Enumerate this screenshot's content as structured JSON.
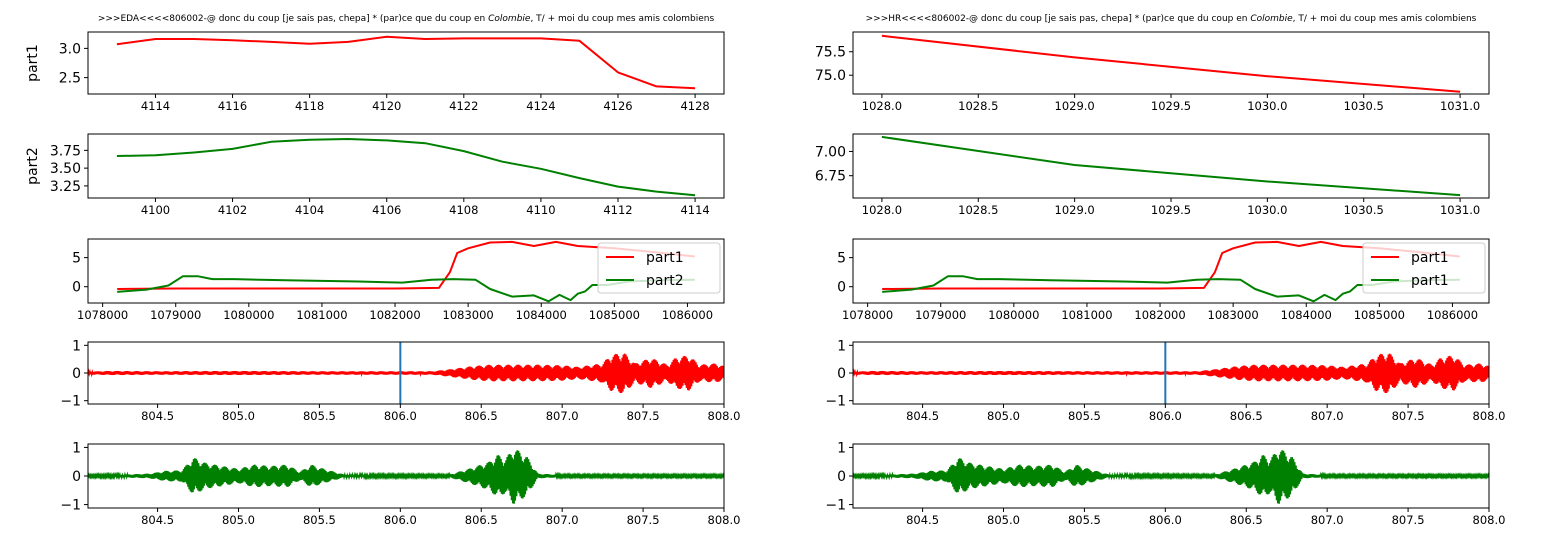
{
  "colors": {
    "red": "#ff0000",
    "green": "#008000",
    "marker": "#1f77b4"
  },
  "chart_data": [
    {
      "id": "eda_part1",
      "type": "line",
      "title": ">>>EDA<<<<806002-@ donc du coup [je sais pas, chepa] * (par)ce que du coup en $\\it{Colombie}$, T/ + moi du coup mes amis colombiens",
      "title_parts": [
        {
          "text": ">>>EDA<<<<806002-@ donc du coup [je sais pas, chepa] * (par)ce que du coup en ",
          "italic": false
        },
        {
          "text": "Colombie",
          "italic": true
        },
        {
          "text": ", T/ + moi du coup mes amis colombiens",
          "italic": false
        }
      ],
      "ylabel": "part1",
      "xlim": [
        4112.25,
        4128.75
      ],
      "ylim": [
        2.22,
        3.28
      ],
      "xticks": [
        4114,
        4116,
        4118,
        4120,
        4122,
        4124,
        4126,
        4128
      ],
      "xtick_labels": [
        "4114",
        "4116",
        "4118",
        "4120",
        "4122",
        "4124",
        "4126",
        "4128"
      ],
      "yticks": [
        2.5,
        3.0
      ],
      "ytick_labels": [
        "2.5",
        "3.0"
      ],
      "series": [
        {
          "color": "#ff0000",
          "x": [
            4113,
            4114,
            4115,
            4116,
            4117,
            4118,
            4119,
            4120,
            4121,
            4122,
            4123,
            4124,
            4125,
            4126,
            4127,
            4128
          ],
          "y": [
            3.07,
            3.16,
            3.16,
            3.14,
            3.11,
            3.08,
            3.11,
            3.2,
            3.16,
            3.17,
            3.17,
            3.17,
            3.13,
            2.59,
            2.35,
            2.32
          ]
        }
      ]
    },
    {
      "id": "eda_part2",
      "type": "line",
      "ylabel": "part2",
      "xlim": [
        4098.25,
        4114.75
      ],
      "ylim": [
        3.08,
        3.98
      ],
      "xticks": [
        4100,
        4102,
        4104,
        4106,
        4108,
        4110,
        4112,
        4114
      ],
      "xtick_labels": [
        "4100",
        "4102",
        "4104",
        "4106",
        "4108",
        "4110",
        "4112",
        "4114"
      ],
      "yticks": [
        3.25,
        3.5,
        3.75
      ],
      "ytick_labels": [
        "3.25",
        "3.50",
        "3.75"
      ],
      "series": [
        {
          "color": "#008000",
          "x": [
            4099,
            4100,
            4101,
            4102,
            4103,
            4104,
            4105,
            4106,
            4107,
            4108,
            4109,
            4110,
            4111,
            4112,
            4113,
            4114
          ],
          "y": [
            3.67,
            3.68,
            3.72,
            3.77,
            3.87,
            3.9,
            3.91,
            3.89,
            3.85,
            3.74,
            3.59,
            3.49,
            3.36,
            3.24,
            3.17,
            3.12
          ]
        }
      ]
    },
    {
      "id": "eda_combined",
      "type": "line",
      "xlim": [
        1077800,
        1086500
      ],
      "ylim": [
        -2.8,
        8.2
      ],
      "xticks": [
        1078000,
        1079000,
        1080000,
        1081000,
        1082000,
        1083000,
        1084000,
        1085000,
        1086000
      ],
      "xtick_labels": [
        "1078000",
        "1079000",
        "1080000",
        "1081000",
        "1082000",
        "1083000",
        "1084000",
        "1085000",
        "1086000"
      ],
      "yticks": [
        0,
        5
      ],
      "ytick_labels": [
        "0",
        "5"
      ],
      "legend": "right",
      "series": [
        {
          "name": "part1",
          "color": "#ff0000",
          "x": [
            1078200,
            1079000,
            1080000,
            1081000,
            1082000,
            1082600,
            1082750,
            1082850,
            1083000,
            1083300,
            1083600,
            1083900,
            1084200,
            1084500,
            1085000,
            1085500,
            1086100
          ],
          "y": [
            -0.4,
            -0.3,
            -0.3,
            -0.3,
            -0.3,
            -0.2,
            2.5,
            5.8,
            6.6,
            7.6,
            7.7,
            7.0,
            7.7,
            7.0,
            6.6,
            6.0,
            5.2
          ]
        },
        {
          "name": "part2",
          "color": "#008000",
          "x": [
            1078200,
            1078600,
            1078900,
            1079100,
            1079300,
            1079500,
            1079800,
            1080500,
            1081000,
            1081500,
            1082100,
            1082500,
            1082800,
            1083100,
            1083300,
            1083600,
            1083900,
            1084100,
            1084250,
            1084400,
            1084500,
            1084600,
            1084700,
            1084900,
            1085200,
            1085600,
            1086100
          ],
          "y": [
            -0.9,
            -0.5,
            0.2,
            1.8,
            1.8,
            1.3,
            1.3,
            1.1,
            1.0,
            0.9,
            0.7,
            1.2,
            1.3,
            1.2,
            -0.4,
            -1.7,
            -1.5,
            -2.5,
            -1.4,
            -2.3,
            -1.2,
            -0.8,
            0.3,
            0.3,
            0.9,
            1.1,
            1.2
          ]
        }
      ]
    },
    {
      "id": "eda_wave1",
      "type": "line",
      "waveform": true,
      "xlim": [
        804.07,
        808.0
      ],
      "ylim": [
        -1.12,
        1.12
      ],
      "xticks": [
        804.5,
        805.0,
        805.5,
        806.0,
        806.5,
        807.0,
        807.5,
        808.0
      ],
      "xtick_labels": [
        "804.5",
        "805.0",
        "805.5",
        "806.0",
        "806.5",
        "807.0",
        "807.5",
        "808.0"
      ],
      "yticks": [
        -1,
        0,
        1
      ],
      "ytick_labels": [
        "−1",
        "0",
        "1"
      ],
      "vline": 806.0,
      "series": [
        {
          "color": "#ff0000",
          "x": [
            804.07,
            804.2,
            804.5,
            805.0,
            805.5,
            805.9,
            806.2,
            806.3,
            806.45,
            806.55,
            806.7,
            806.85,
            807.0,
            807.1,
            807.25,
            807.3,
            807.38,
            807.45,
            807.55,
            807.65,
            807.7,
            807.78,
            807.85,
            807.95,
            808.0
          ],
          "amp": [
            0.05,
            0.07,
            0.06,
            0.07,
            0.06,
            0.06,
            0.06,
            0.13,
            0.25,
            0.3,
            0.3,
            0.3,
            0.28,
            0.22,
            0.35,
            0.65,
            0.75,
            0.35,
            0.55,
            0.3,
            0.55,
            0.65,
            0.3,
            0.35,
            0.25
          ]
        }
      ]
    },
    {
      "id": "eda_wave2",
      "type": "line",
      "waveform": true,
      "xlim": [
        804.07,
        808.0
      ],
      "ylim": [
        -1.12,
        1.12
      ],
      "xticks": [
        804.5,
        805.0,
        805.5,
        806.0,
        806.5,
        807.0,
        807.5,
        808.0
      ],
      "xtick_labels": [
        "804.5",
        "805.0",
        "805.5",
        "806.0",
        "806.5",
        "807.0",
        "807.5",
        "808.0"
      ],
      "yticks": [
        -1,
        0,
        1
      ],
      "ytick_labels": [
        "−1",
        "0",
        "1"
      ],
      "series": [
        {
          "color": "#008000",
          "x": [
            804.07,
            804.3,
            804.45,
            804.55,
            804.65,
            804.72,
            804.8,
            804.9,
            805.0,
            805.1,
            805.2,
            805.3,
            805.38,
            805.45,
            805.5,
            805.65,
            806.3,
            806.45,
            806.55,
            806.6,
            806.65,
            806.7,
            806.78,
            806.85,
            807.0,
            807.5,
            808.0
          ],
          "amp": [
            0.04,
            0.05,
            0.08,
            0.18,
            0.2,
            0.65,
            0.45,
            0.35,
            0.25,
            0.4,
            0.35,
            0.4,
            0.15,
            0.4,
            0.3,
            0.05,
            0.04,
            0.3,
            0.5,
            0.75,
            0.6,
            1.0,
            0.7,
            0.08,
            0.04,
            0.04,
            0.04
          ]
        }
      ]
    },
    {
      "id": "hr_part1",
      "type": "line",
      "title": ">>>HR<<<<806002-@ donc du coup [je sais pas, chepa] * (par)ce que du coup en $\\it{Colombie}$, T/ + moi du coup mes amis colombiens",
      "title_parts": [
        {
          "text": ">>>HR<<<<806002-@ donc du coup [je sais pas, chepa] * (par)ce que du coup en ",
          "italic": false
        },
        {
          "text": "Colombie",
          "italic": true
        },
        {
          "text": ", T/ + moi du coup mes amis colombiens",
          "italic": false
        }
      ],
      "xlim": [
        1027.85,
        1031.15
      ],
      "ylim": [
        74.6,
        75.92
      ],
      "xticks": [
        1028.0,
        1028.5,
        1029.0,
        1029.5,
        1030.0,
        1030.5,
        1031.0
      ],
      "xtick_labels": [
        "1028.0",
        "1028.5",
        "1029.0",
        "1029.5",
        "1030.0",
        "1030.5",
        "1031.0"
      ],
      "yticks": [
        75.0,
        75.5
      ],
      "ytick_labels": [
        "75.0",
        "75.5"
      ],
      "series": [
        {
          "color": "#ff0000",
          "x": [
            1028.0,
            1029.0,
            1030.0,
            1031.0
          ],
          "y": [
            75.84,
            75.38,
            74.98,
            74.65
          ]
        }
      ]
    },
    {
      "id": "hr_part2",
      "type": "line",
      "xlim": [
        1027.85,
        1031.15
      ],
      "ylim": [
        6.52,
        7.18
      ],
      "xticks": [
        1028.0,
        1028.5,
        1029.0,
        1029.5,
        1030.0,
        1030.5,
        1031.0
      ],
      "xtick_labels": [
        "1028.0",
        "1028.5",
        "1029.0",
        "1029.5",
        "1030.0",
        "1030.5",
        "1031.0"
      ],
      "yticks": [
        6.75,
        7.0
      ],
      "ytick_labels": [
        "6.75",
        "7.00"
      ],
      "series": [
        {
          "color": "#008000",
          "x": [
            1028.0,
            1029.0,
            1030.0,
            1031.0
          ],
          "y": [
            7.15,
            6.86,
            6.69,
            6.55
          ]
        }
      ]
    },
    {
      "id": "hr_combined",
      "type": "line",
      "xlim": [
        1077800,
        1086500
      ],
      "ylim": [
        -2.8,
        8.2
      ],
      "xticks": [
        1078000,
        1079000,
        1080000,
        1081000,
        1082000,
        1083000,
        1084000,
        1085000,
        1086000
      ],
      "xtick_labels": [
        "1078000",
        "1079000",
        "1080000",
        "1081000",
        "1082000",
        "1083000",
        "1084000",
        "1085000",
        "1086000"
      ],
      "yticks": [
        0,
        5
      ],
      "ytick_labels": [
        "0",
        "5"
      ],
      "legend": "right",
      "series": [
        {
          "name": "part1",
          "color": "#ff0000",
          "x": [
            1078200,
            1079000,
            1080000,
            1081000,
            1082000,
            1082600,
            1082750,
            1082850,
            1083000,
            1083300,
            1083600,
            1083900,
            1084200,
            1084500,
            1085000,
            1085500,
            1086100
          ],
          "y": [
            -0.4,
            -0.3,
            -0.3,
            -0.3,
            -0.3,
            -0.2,
            2.5,
            5.8,
            6.6,
            7.6,
            7.7,
            7.0,
            7.7,
            7.0,
            6.6,
            6.0,
            5.2
          ]
        },
        {
          "name": "part1",
          "color": "#008000",
          "x": [
            1078200,
            1078600,
            1078900,
            1079100,
            1079300,
            1079500,
            1079800,
            1080500,
            1081000,
            1081500,
            1082100,
            1082500,
            1082800,
            1083100,
            1083300,
            1083600,
            1083900,
            1084100,
            1084250,
            1084400,
            1084500,
            1084600,
            1084700,
            1084900,
            1085200,
            1085600,
            1086100
          ],
          "y": [
            -0.9,
            -0.5,
            0.2,
            1.8,
            1.8,
            1.3,
            1.3,
            1.1,
            1.0,
            0.9,
            0.7,
            1.2,
            1.3,
            1.2,
            -0.4,
            -1.7,
            -1.5,
            -2.5,
            -1.4,
            -2.3,
            -1.2,
            -0.8,
            0.3,
            0.3,
            0.9,
            1.1,
            1.2
          ]
        }
      ]
    },
    {
      "id": "hr_wave1",
      "type": "line",
      "waveform": true,
      "xlim": [
        804.07,
        808.0
      ],
      "ylim": [
        -1.12,
        1.12
      ],
      "xticks": [
        804.5,
        805.0,
        805.5,
        806.0,
        806.5,
        807.0,
        807.5,
        808.0
      ],
      "xtick_labels": [
        "804.5",
        "805.0",
        "805.5",
        "806.0",
        "806.5",
        "807.0",
        "807.5",
        "808.0"
      ],
      "yticks": [
        -1,
        0,
        1
      ],
      "ytick_labels": [
        "−1",
        "0",
        "1"
      ],
      "vline": 806.0,
      "series": [
        {
          "color": "#ff0000",
          "x": [
            804.07,
            804.2,
            804.5,
            805.0,
            805.5,
            805.9,
            806.2,
            806.3,
            806.45,
            806.55,
            806.7,
            806.85,
            807.0,
            807.1,
            807.25,
            807.3,
            807.38,
            807.45,
            807.55,
            807.65,
            807.7,
            807.78,
            807.85,
            807.95,
            808.0
          ],
          "amp": [
            0.05,
            0.07,
            0.06,
            0.07,
            0.06,
            0.06,
            0.06,
            0.13,
            0.25,
            0.3,
            0.3,
            0.3,
            0.28,
            0.22,
            0.35,
            0.65,
            0.75,
            0.35,
            0.55,
            0.3,
            0.55,
            0.65,
            0.3,
            0.35,
            0.25
          ]
        }
      ]
    },
    {
      "id": "hr_wave2",
      "type": "line",
      "waveform": true,
      "xlim": [
        804.07,
        808.0
      ],
      "ylim": [
        -1.12,
        1.12
      ],
      "xticks": [
        804.5,
        805.0,
        805.5,
        806.0,
        806.5,
        807.0,
        807.5,
        808.0
      ],
      "xtick_labels": [
        "804.5",
        "805.0",
        "805.5",
        "806.0",
        "806.5",
        "807.0",
        "807.5",
        "808.0"
      ],
      "yticks": [
        -1,
        0,
        1
      ],
      "ytick_labels": [
        "−1",
        "0",
        "1"
      ],
      "series": [
        {
          "color": "#008000",
          "x": [
            804.07,
            804.3,
            804.45,
            804.55,
            804.65,
            804.72,
            804.8,
            804.9,
            805.0,
            805.1,
            805.2,
            805.3,
            805.38,
            805.45,
            805.5,
            805.65,
            806.3,
            806.45,
            806.55,
            806.6,
            806.65,
            806.7,
            806.78,
            806.85,
            807.0,
            807.5,
            808.0
          ],
          "amp": [
            0.04,
            0.05,
            0.08,
            0.18,
            0.2,
            0.65,
            0.45,
            0.35,
            0.25,
            0.4,
            0.35,
            0.4,
            0.15,
            0.4,
            0.3,
            0.05,
            0.04,
            0.3,
            0.5,
            0.75,
            0.6,
            1.0,
            0.7,
            0.08,
            0.04,
            0.04,
            0.04
          ]
        }
      ]
    }
  ]
}
